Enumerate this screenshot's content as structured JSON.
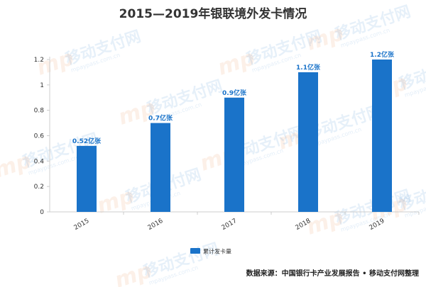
{
  "chart_data": {
    "type": "bar",
    "title": "2015—2019年银联境外发卡情况",
    "categories": [
      "2015",
      "2016",
      "2017",
      "2018",
      "2019"
    ],
    "series": [
      {
        "name": "累计发卡量",
        "values": [
          0.52,
          0.7,
          0.9,
          1.1,
          1.2
        ],
        "data_labels": [
          "0.52亿张",
          "0.7亿张",
          "0.9亿张",
          "1.1亿张",
          "1.2亿张"
        ]
      }
    ],
    "yticks": [
      "0",
      "0.2",
      "0.4",
      "0.6",
      "0.8",
      "1",
      "1.2"
    ],
    "ylim": [
      0,
      1.2
    ],
    "grid": false,
    "legend_position": "bottom-center",
    "bar_color": "#1a73c9"
  },
  "source": "数据来源：中国银行卡产业发展报告 • 移动支付网整理",
  "watermark": {
    "mark": "mp",
    "text": "移动支付网",
    "url": "mpaypass.com.cn"
  }
}
